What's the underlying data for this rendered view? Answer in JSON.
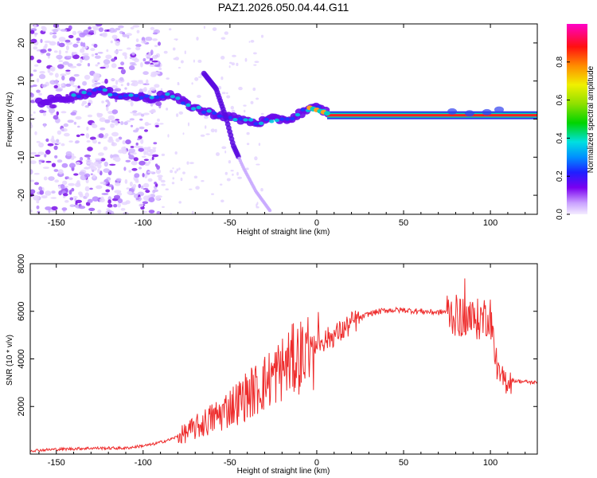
{
  "title": "PAZ1.2026.050.04.44.G11",
  "chart_data": [
    {
      "type": "heatmap",
      "xlabel": "Height of straight line (km)",
      "ylabel": "Frequency (Hz)",
      "xlim": [
        -165,
        127
      ],
      "ylim": [
        -25,
        25
      ],
      "xticks": [
        "-150",
        "-100",
        "-50",
        "0",
        "50",
        "100"
      ],
      "yticks": [
        "20",
        "10",
        "0",
        "-10",
        "-20"
      ],
      "colorbar": {
        "label": "Normalized spectral amplitude",
        "range": [
          0,
          1
        ],
        "ticks": [
          "0.0",
          "0.2",
          "0.4",
          "0.6",
          "0.8"
        ]
      },
      "ridge": {
        "x": [
          -165,
          -140,
          -125,
          -110,
          -95,
          -85,
          -75,
          -65,
          -55,
          -45,
          -35,
          -25,
          -15,
          -8,
          0,
          5,
          10,
          127
        ],
        "y": [
          4,
          6,
          7.5,
          6,
          5.5,
          6.5,
          4,
          2,
          1,
          0,
          -1,
          0,
          0,
          2,
          3,
          2,
          1,
          1
        ]
      },
      "spur": {
        "x": [
          -65,
          -58,
          -52,
          -48,
          -42,
          -35,
          -27
        ],
        "y": [
          12,
          8,
          0,
          -7,
          -13,
          -19,
          -24
        ]
      }
    },
    {
      "type": "line",
      "xlabel": "Height of straight line (km)",
      "ylabel": "SNR (10 * v/v)",
      "xlim": [
        -165,
        127
      ],
      "ylim": [
        0,
        8000
      ],
      "xticks": [
        "-150",
        "-100",
        "-50",
        "0",
        "50",
        "100"
      ],
      "yticks": [
        "8000",
        "6000",
        "4000",
        "2000"
      ],
      "color": "#ee2c2c",
      "series": [
        {
          "name": "SNR",
          "x": [
            -165,
            -150,
            -130,
            -110,
            -95,
            -85,
            -78,
            -70,
            -65,
            -60,
            -55,
            -50,
            -45,
            -40,
            -35,
            -30,
            -25,
            -20,
            -15,
            -10,
            -5,
            0,
            5,
            10,
            15,
            20,
            25,
            30,
            40,
            50,
            60,
            70,
            75,
            80,
            85,
            90,
            95,
            100,
            102,
            105,
            108,
            112,
            118,
            127
          ],
          "y": [
            150,
            200,
            250,
            250,
            400,
            600,
            800,
            1100,
            1300,
            1500,
            1700,
            2000,
            2200,
            2500,
            2700,
            3000,
            3300,
            3600,
            3900,
            4100,
            4400,
            4700,
            4800,
            5000,
            5200,
            5500,
            5700,
            5900,
            6050,
            6050,
            6000,
            5950,
            6000,
            5800,
            5800,
            5600,
            5700,
            5900,
            4500,
            3200,
            3100,
            3100,
            3050,
            3000
          ]
        }
      ]
    }
  ]
}
